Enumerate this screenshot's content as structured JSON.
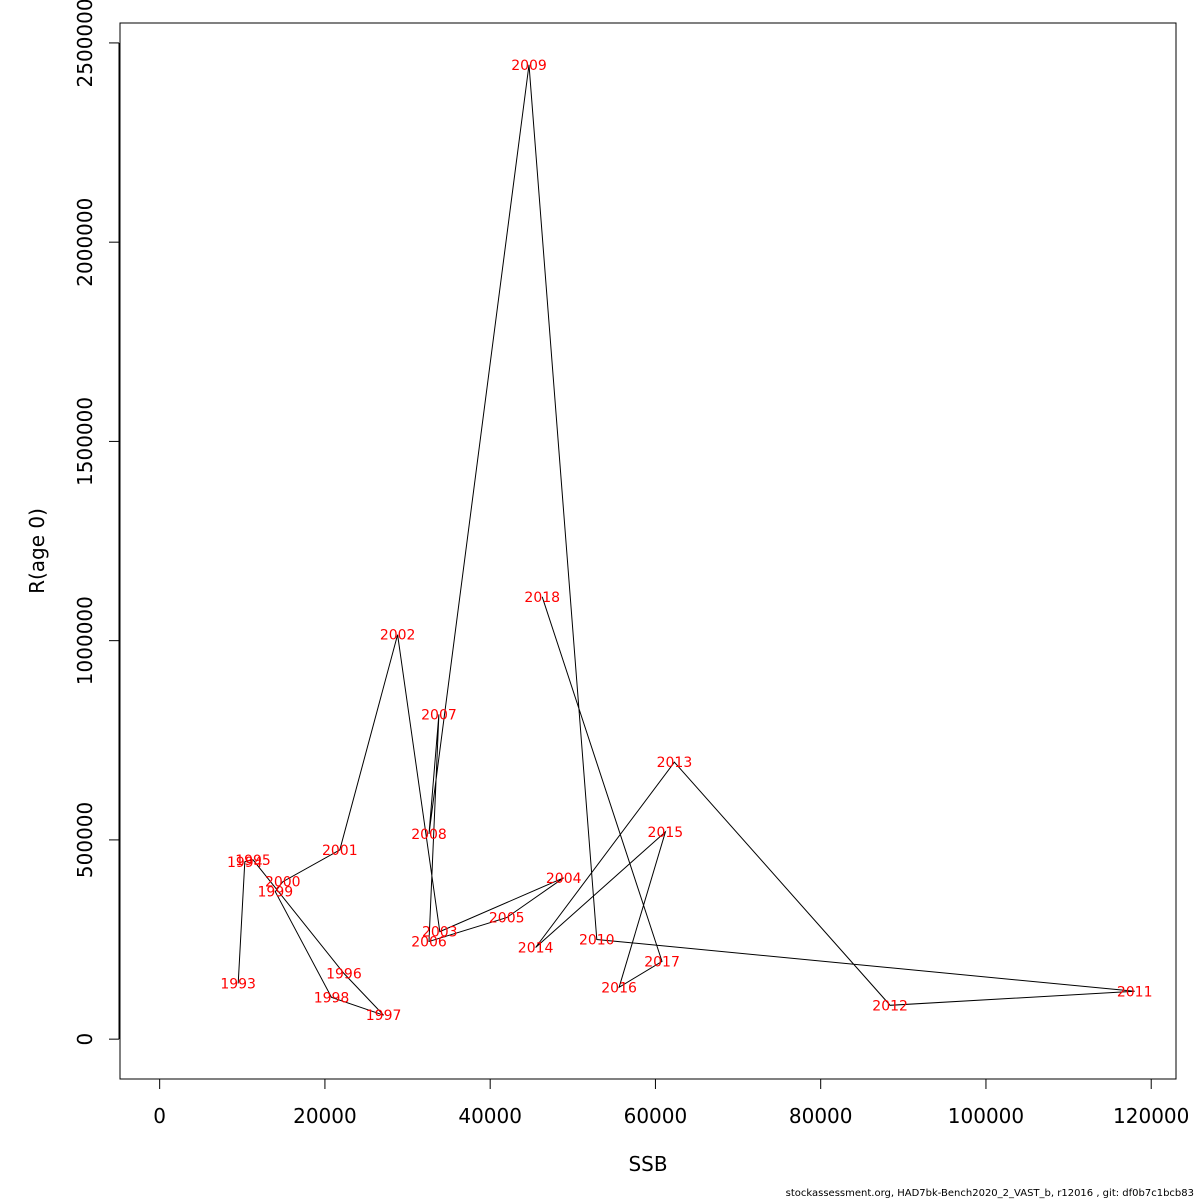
{
  "chart_data": {
    "type": "line",
    "xlabel": "SSB",
    "ylabel": "R(age 0)",
    "xlim": [
      -4800,
      123000
    ],
    "ylim": [
      -100000,
      2550000
    ],
    "x_ticks": [
      0,
      20000,
      40000,
      60000,
      80000,
      100000,
      120000
    ],
    "x_tick_labels": [
      "0",
      "20000",
      "40000",
      "60000",
      "80000",
      "100000",
      "120000"
    ],
    "y_ticks": [
      0,
      500000,
      1000000,
      1500000,
      2000000,
      2500000
    ],
    "y_tick_labels": [
      "0",
      "500000",
      "1000000",
      "1500000",
      "2000000",
      "2500000"
    ],
    "grid": false,
    "line_color": "#000000",
    "label_color": "#ff0000",
    "points": [
      {
        "year": "1993",
        "ssb": 9500,
        "r": 140000
      },
      {
        "year": "1994",
        "ssb": 10300,
        "r": 445000
      },
      {
        "year": "1995",
        "ssb": 11300,
        "r": 450000
      },
      {
        "year": "1996",
        "ssb": 22300,
        "r": 165000
      },
      {
        "year": "1997",
        "ssb": 27100,
        "r": 60000
      },
      {
        "year": "1998",
        "ssb": 20800,
        "r": 105000
      },
      {
        "year": "1999",
        "ssb": 14000,
        "r": 370000
      },
      {
        "year": "2000",
        "ssb": 14900,
        "r": 395000
      },
      {
        "year": "2001",
        "ssb": 21800,
        "r": 475000
      },
      {
        "year": "2002",
        "ssb": 28800,
        "r": 1015000
      },
      {
        "year": "2003",
        "ssb": 33900,
        "r": 270000
      },
      {
        "year": "2004",
        "ssb": 48900,
        "r": 405000
      },
      {
        "year": "2005",
        "ssb": 42000,
        "r": 305000
      },
      {
        "year": "2006",
        "ssb": 32600,
        "r": 245000
      },
      {
        "year": "2007",
        "ssb": 33800,
        "r": 815000
      },
      {
        "year": "2008",
        "ssb": 32600,
        "r": 515000
      },
      {
        "year": "2009",
        "ssb": 44700,
        "r": 2445000
      },
      {
        "year": "2010",
        "ssb": 52900,
        "r": 250000
      },
      {
        "year": "2011",
        "ssb": 118000,
        "r": 120000
      },
      {
        "year": "2012",
        "ssb": 88400,
        "r": 85000
      },
      {
        "year": "2013",
        "ssb": 62300,
        "r": 695000
      },
      {
        "year": "2014",
        "ssb": 45500,
        "r": 230000
      },
      {
        "year": "2015",
        "ssb": 61200,
        "r": 520000
      },
      {
        "year": "2016",
        "ssb": 55600,
        "r": 130000
      },
      {
        "year": "2017",
        "ssb": 60800,
        "r": 195000
      },
      {
        "year": "2018",
        "ssb": 46300,
        "r": 1110000
      }
    ]
  },
  "footer": "stockassessment.org, HAD7bk-Bench2020_2_VAST_b, r12016 , git: df0b7c1bcb83"
}
